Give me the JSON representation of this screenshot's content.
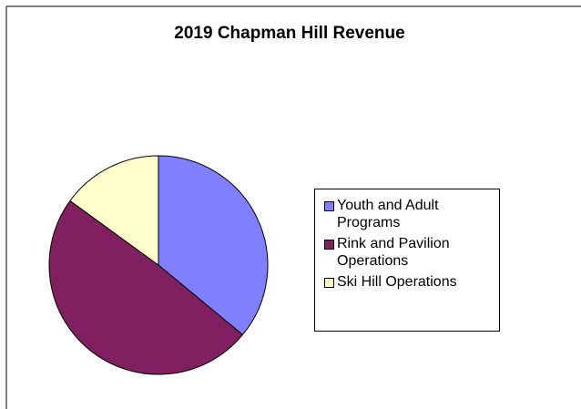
{
  "chart_data": {
    "type": "pie",
    "title": "2019 Chapman Hill Revenue",
    "categories": [
      "Youth and Adult Programs",
      "Rink and Pavilion Operations",
      "Ski Hill Operations"
    ],
    "values": [
      36,
      49,
      15
    ],
    "colors": [
      "#8080ff",
      "#802060",
      "#ffffcc"
    ],
    "legend": "right"
  }
}
